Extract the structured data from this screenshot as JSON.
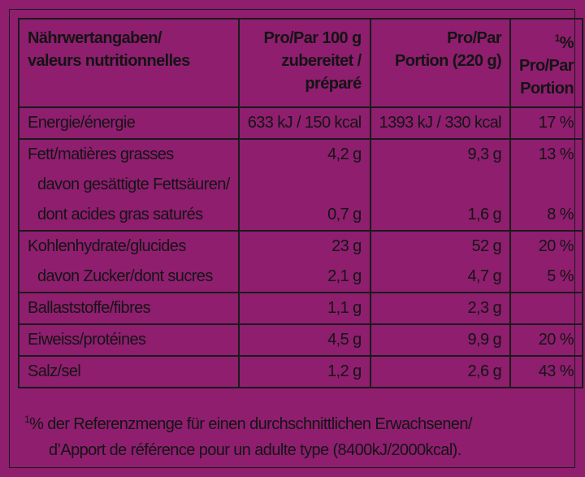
{
  "header": {
    "col1": [
      "Nährwertangaben/",
      "valeurs nutritionnelles"
    ],
    "col2": [
      "Pro/Par 100 g",
      "zubereitet /",
      "préparé"
    ],
    "col3": [
      "Pro/Par",
      "Portion (220 g)"
    ],
    "col4_sup": "1",
    "col4": [
      "% Pro/Par",
      "Portion"
    ]
  },
  "rows": [
    {
      "lines": [
        {
          "label": "Energie/énergie",
          "per100": "633 kJ / 150 kcal",
          "portion": "1393 kJ / 330 kcal",
          "pct": "17 %"
        }
      ]
    },
    {
      "lines": [
        {
          "label": "Fett/matières grasses",
          "per100": "4,2 g",
          "portion": "9,3 g",
          "pct": "13 %"
        },
        {
          "label": "davon gesättigte Fettsäuren/",
          "per100": "",
          "portion": "",
          "pct": ""
        },
        {
          "label": "dont acides gras saturés",
          "per100": "0,7 g",
          "portion": "1,6 g",
          "pct": "8 %"
        }
      ]
    },
    {
      "lines": [
        {
          "label": "Kohlenhydrate/glucides",
          "per100": "23 g",
          "portion": "52 g",
          "pct": "20 %"
        },
        {
          "label": "davon Zucker/dont sucres",
          "per100": "2,1 g",
          "portion": "4,7 g",
          "pct": "5 %"
        }
      ]
    },
    {
      "lines": [
        {
          "label": "Ballaststoffe/fibres",
          "per100": "1,1 g",
          "portion": "2,3 g",
          "pct": ""
        }
      ]
    },
    {
      "lines": [
        {
          "label": "Eiweiss/protéines",
          "per100": "4,5 g",
          "portion": "9,9 g",
          "pct": "20 %"
        }
      ]
    },
    {
      "lines": [
        {
          "label": "Salz/sel",
          "per100": "1,2 g",
          "portion": "2,6 g",
          "pct": "43 %"
        }
      ]
    }
  ],
  "footnote": {
    "sup": "1",
    "line1": "% der Referenzmenge für einen durchschnittlichen Erwachsenen/",
    "line2": "d’Apport de référence pour un adulte type (8400kJ/2000kcal)."
  }
}
